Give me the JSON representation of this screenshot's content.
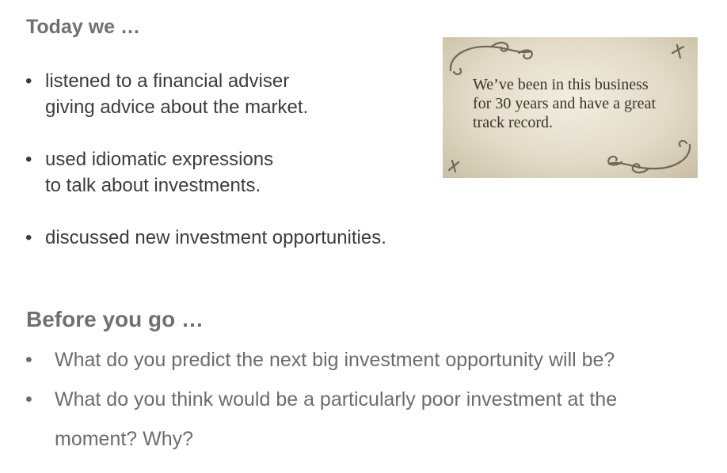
{
  "today": {
    "heading": "Today we …",
    "bullet": "•",
    "items": [
      {
        "lines": [
          "listened to a financial adviser",
          "giving advice about the market."
        ]
      },
      {
        "lines": [
          "used idiomatic expressions",
          "to talk about investments."
        ]
      },
      {
        "lines": [
          "discussed new investment opportunities."
        ]
      }
    ]
  },
  "card": {
    "lines": [
      "We’ve been in this business",
      "for 30 years and have a great",
      "track record."
    ],
    "colors": {
      "paper": "#e3dbc8",
      "ink": "#3a332a",
      "ornament": "#6e665a"
    }
  },
  "before": {
    "heading": "Before you go …",
    "bullet": "•",
    "items": [
      {
        "lines": [
          "What do you predict the next big investment opportunity will be?"
        ]
      },
      {
        "lines": [
          "What do you think would be a particularly poor investment at the",
          "moment? Why?"
        ]
      }
    ]
  },
  "colors": {
    "heading": "#707070",
    "body": "#3c3c3c",
    "question": "#6c6c6c",
    "background": "#ffffff"
  }
}
